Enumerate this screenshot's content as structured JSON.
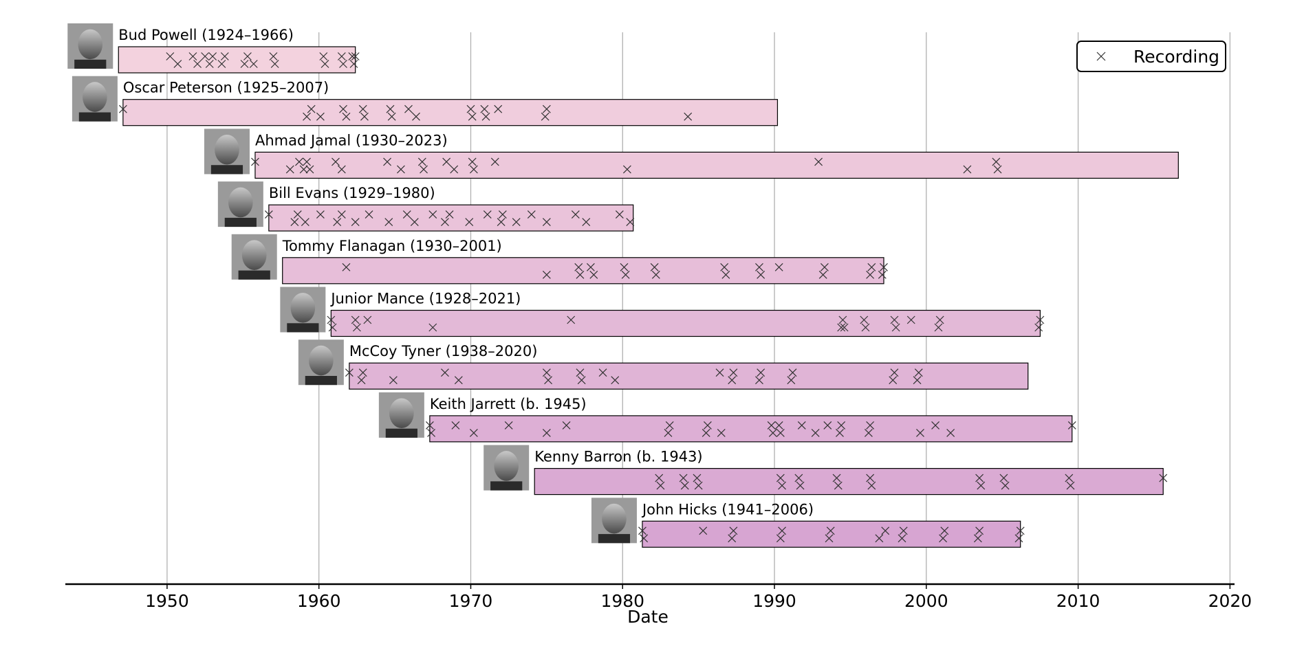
{
  "chart_data": {
    "type": "timeline",
    "xlabel": "Date",
    "xlim": [
      1943.3,
      2020.3
    ],
    "xticks": [
      1950,
      1960,
      1970,
      1980,
      1990,
      2000,
      2010,
      2020
    ],
    "grid": "vertical",
    "legend": {
      "placement": "top-right",
      "entries": [
        {
          "label": "Recording",
          "marker": "x"
        }
      ]
    },
    "colors": {
      "bar_light": "#f3d2de",
      "bar_dark": "#d7a5d2",
      "marker": "#333333",
      "grid": "#b0b0b0"
    },
    "artists": [
      {
        "label": "Bud Powell (1924–1966)",
        "photo": "bud-powell-photo",
        "span": [
          1946.8,
          1962.4
        ],
        "recordings": [
          1950.2,
          1950.7,
          1951.7,
          1952.0,
          1952.5,
          1952.8,
          1953.0,
          1953.6,
          1953.8,
          1955.1,
          1955.3,
          1955.7,
          1957.0,
          1957.1,
          1960.3,
          1960.4,
          1961.5,
          1961.6,
          1962.2,
          1962.3,
          1962.4
        ]
      },
      {
        "label": "Oscar Peterson (1925–2007)",
        "photo": "oscar-peterson-photo",
        "span": [
          1947.1,
          1990.2
        ],
        "recordings": [
          1947.1,
          1959.2,
          1959.5,
          1960.1,
          1961.6,
          1961.8,
          1962.9,
          1963.0,
          1964.7,
          1964.8,
          1965.9,
          1966.4,
          1970.0,
          1970.1,
          1970.9,
          1971.0,
          1971.8,
          1974.9,
          1975.0,
          1984.3
        ]
      },
      {
        "label": "Ahmad Jamal (1930–2023)",
        "photo": "ahmad-jamal-photo",
        "span": [
          1955.8,
          2016.6
        ],
        "recordings": [
          1955.8,
          1958.1,
          1958.7,
          1959.0,
          1959.2,
          1959.4,
          1961.1,
          1961.5,
          1964.5,
          1965.4,
          1966.8,
          1966.9,
          1968.4,
          1968.9,
          1970.1,
          1970.2,
          1971.6,
          1980.3,
          1992.9,
          2002.7,
          2004.6,
          2004.7
        ]
      },
      {
        "label": "Bill Evans (1929–1980)",
        "photo": "bill-evans-photo",
        "span": [
          1956.7,
          1980.7
        ],
        "recordings": [
          1956.7,
          1958.4,
          1958.6,
          1959.1,
          1960.1,
          1961.2,
          1961.5,
          1962.4,
          1963.3,
          1964.6,
          1965.8,
          1966.3,
          1967.5,
          1968.3,
          1968.6,
          1969.9,
          1971.1,
          1972.0,
          1972.1,
          1973.0,
          1974.0,
          1975.0,
          1976.9,
          1977.6,
          1979.8,
          1980.5
        ]
      },
      {
        "label": "Tommy Flanagan (1930–2001)",
        "photo": "tommy-flanagan-photo",
        "span": [
          1957.6,
          1997.2
        ],
        "recordings": [
          1961.8,
          1975.0,
          1977.1,
          1977.2,
          1977.9,
          1978.1,
          1980.1,
          1980.2,
          1982.1,
          1982.2,
          1986.7,
          1986.8,
          1989.0,
          1989.1,
          1990.3,
          1993.2,
          1993.3,
          1996.3,
          1996.4,
          1997.1,
          1997.2
        ]
      },
      {
        "label": "Junior Mance (1928–2021)",
        "photo": "junior-mance-photo",
        "span": [
          1960.8,
          2007.5
        ],
        "recordings": [
          1960.8,
          1960.9,
          1962.4,
          1962.5,
          1963.2,
          1967.5,
          1976.6,
          1994.4,
          1994.5,
          1994.6,
          1995.9,
          1996.0,
          1997.9,
          1998.0,
          1999.0,
          2000.8,
          2000.9,
          2007.4,
          2007.5
        ]
      },
      {
        "label": "McCoy Tyner (1938–2020)",
        "photo": "mccoy-tyner-photo",
        "span": [
          1962.0,
          2006.7
        ],
        "recordings": [
          1962.0,
          1962.8,
          1962.9,
          1964.9,
          1968.3,
          1969.2,
          1975.0,
          1975.1,
          1977.2,
          1977.3,
          1978.7,
          1979.5,
          1986.4,
          1987.2,
          1987.3,
          1989.0,
          1989.1,
          1991.1,
          1991.2,
          1997.8,
          1997.9,
          1999.4,
          1999.5
        ]
      },
      {
        "label": "Keith Jarrett (b. 1945)",
        "photo": "keith-jarrett-photo",
        "span": [
          1967.3,
          2009.6
        ],
        "recordings": [
          1967.3,
          1967.4,
          1969.0,
          1970.2,
          1972.5,
          1975.0,
          1976.3,
          1983.0,
          1983.1,
          1985.5,
          1985.6,
          1986.5,
          1989.8,
          1989.9,
          1990.3,
          1990.4,
          1991.8,
          1992.7,
          1993.5,
          1994.3,
          1994.4,
          1996.2,
          1996.3,
          1999.6,
          2000.6,
          2001.6,
          2009.6
        ]
      },
      {
        "label": "Kenny Barron (b. 1943)",
        "photo": "kenny-barron-photo",
        "span": [
          1974.2,
          2015.6
        ],
        "recordings": [
          1982.4,
          1982.5,
          1984.0,
          1984.1,
          1984.9,
          1985.0,
          1990.4,
          1990.5,
          1991.6,
          1991.7,
          1994.1,
          1994.2,
          1996.3,
          1996.4,
          2003.5,
          2003.6,
          2005.1,
          2005.2,
          2009.4,
          2009.5,
          2015.6
        ]
      },
      {
        "label": "John Hicks (1941–2006)",
        "photo": "john-hicks-photo",
        "span": [
          1981.3,
          2006.2
        ],
        "recordings": [
          1981.3,
          1981.4,
          1985.3,
          1987.2,
          1987.3,
          1990.4,
          1990.5,
          1993.6,
          1993.7,
          1996.9,
          1997.3,
          1998.4,
          1998.5,
          2001.1,
          2001.2,
          2003.4,
          2003.5,
          2006.1,
          2006.2
        ]
      }
    ]
  }
}
